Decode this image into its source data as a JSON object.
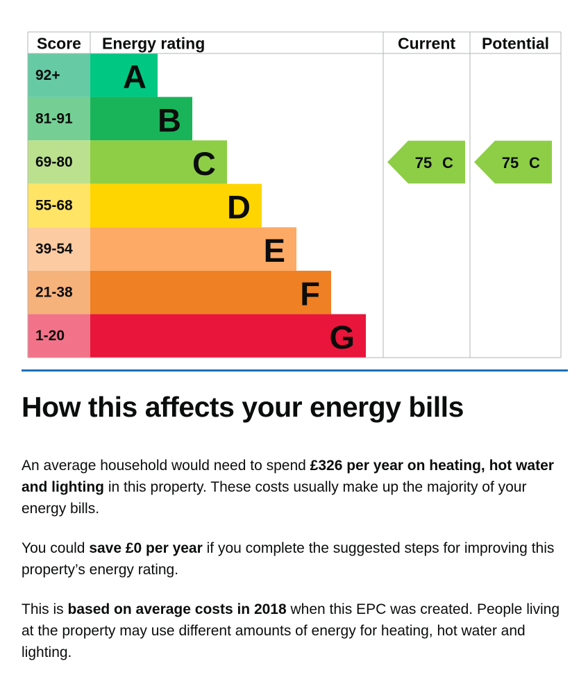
{
  "epc": {
    "headers": {
      "score": "Score",
      "rating": "Energy rating",
      "current": "Current",
      "potential": "Potential"
    },
    "rows": [
      {
        "score": "92+",
        "rating": "A",
        "color": "#00c781",
        "score_color": "#66cba5"
      },
      {
        "score": "81-91",
        "rating": "B",
        "color": "#19b459",
        "score_color": "#75cf94"
      },
      {
        "score": "69-80",
        "rating": "C",
        "color": "#8dce46",
        "score_color": "#bbe18f"
      },
      {
        "score": "55-68",
        "rating": "D",
        "color": "#ffd500",
        "score_color": "#ffe466"
      },
      {
        "score": "39-54",
        "rating": "E",
        "color": "#fcaa65",
        "score_color": "#fdcba1"
      },
      {
        "score": "21-38",
        "rating": "F",
        "color": "#ef8023",
        "score_color": "#f5b27b"
      },
      {
        "score": "1-20",
        "rating": "G",
        "color": "#e9153b",
        "score_color": "#f27389"
      }
    ],
    "current": {
      "score": 75,
      "rating": "C"
    },
    "potential": {
      "score": 75,
      "rating": "C"
    }
  },
  "bills": {
    "heading": "How this affects your energy bills",
    "paragraphs": [
      [
        {
          "text": "An average household would need to spend ",
          "bold": false
        },
        {
          "text": "£326 per year on heating, hot water and lighting",
          "bold": true
        },
        {
          "text": " in this property. These costs usually make up the majority of your energy bills.",
          "bold": false
        }
      ],
      [
        {
          "text": "You could ",
          "bold": false
        },
        {
          "text": "save £0 per year",
          "bold": true
        },
        {
          "text": " if you complete the suggested steps for improving this property’s energy rating.",
          "bold": false
        }
      ],
      [
        {
          "text": "This is ",
          "bold": false
        },
        {
          "text": "based on average costs in 2018",
          "bold": true
        },
        {
          "text": " when this EPC was created. People living at the property may use different amounts of energy for heating, hot water and lighting.",
          "bold": false
        }
      ]
    ]
  }
}
